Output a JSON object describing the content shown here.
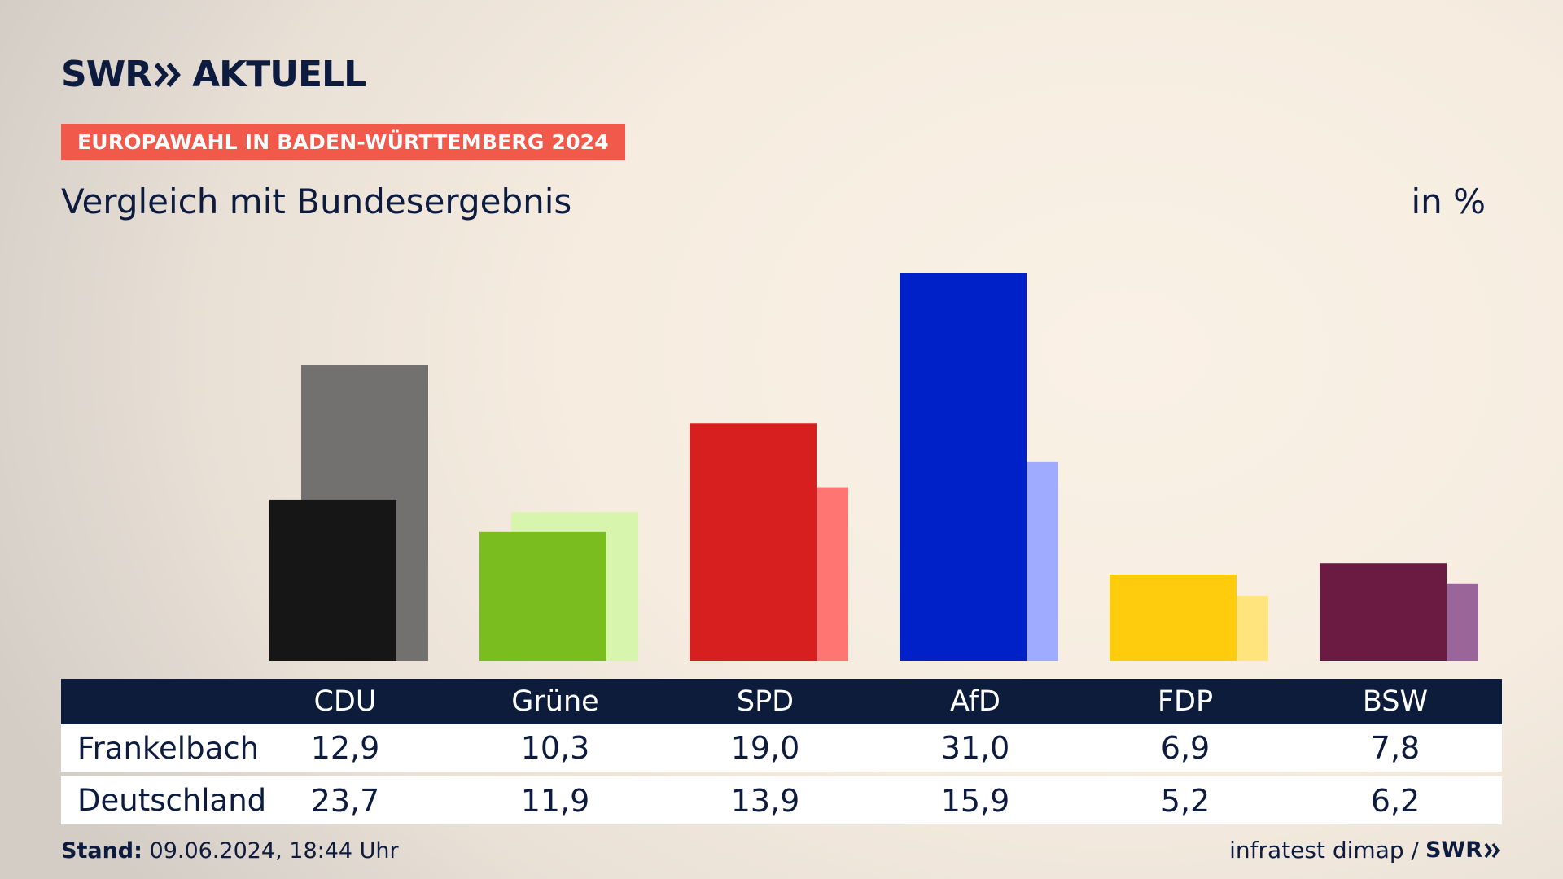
{
  "logo": {
    "brand": "SWR",
    "product": "AKTUELL"
  },
  "badge": "EUROPAWAHL IN BADEN-WÜRTTEMBERG 2024",
  "subtitle": "Vergleich mit Bundesergebnis",
  "unit": "in %",
  "chart_data": {
    "type": "bar",
    "categories": [
      "CDU",
      "Grüne",
      "SPD",
      "AfD",
      "FDP",
      "BSW"
    ],
    "series": [
      {
        "name": "Frankelbach",
        "values": [
          12.9,
          10.3,
          19.0,
          31.0,
          6.9,
          7.8
        ]
      },
      {
        "name": "Deutschland",
        "values": [
          23.7,
          11.9,
          13.9,
          15.9,
          5.2,
          6.2
        ]
      }
    ],
    "colors": {
      "Frankelbach": [
        "#161616",
        "#79bd1e",
        "#d71f1f",
        "#0020c8",
        "#ffcc0d",
        "#6b1a42"
      ],
      "Deutschland": [
        "#727170",
        "#d8f5ad",
        "#ff7571",
        "#9eabff",
        "#ffe37c",
        "#9a6699"
      ]
    },
    "ylim": [
      0,
      31
    ]
  },
  "table": {
    "rows": [
      {
        "label": "Frankelbach",
        "values": [
          "12,9",
          "10,3",
          "19,0",
          "31,0",
          "6,9",
          "7,8"
        ]
      },
      {
        "label": "Deutschland",
        "values": [
          "23,7",
          "11,9",
          "13,9",
          "15,9",
          "5,2",
          "6,2"
        ]
      }
    ]
  },
  "footer": {
    "stand_label": "Stand:",
    "stand_value": "09.06.2024, 18:44 Uhr",
    "source": "infratest dimap /",
    "source_brand": "SWR"
  }
}
